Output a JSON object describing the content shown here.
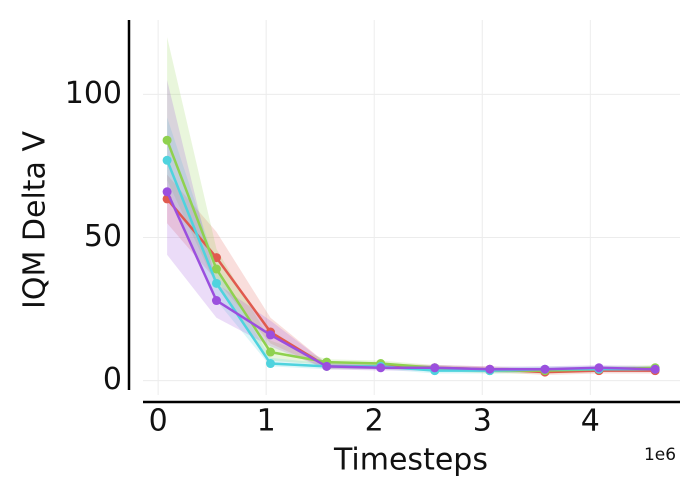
{
  "chart_data": {
    "type": "line",
    "xlabel": "Timesteps",
    "ylabel": "IQM Delta V",
    "x_offset_label": "1e6",
    "x": [
      0.083,
      0.54,
      1.04,
      1.56,
      2.06,
      2.56,
      3.07,
      3.58,
      4.08,
      4.6
    ],
    "series": [
      {
        "color": "#e05a4e",
        "values": [
          63.5,
          43,
          17,
          5,
          5,
          4.5,
          4,
          3,
          3.5,
          3.5
        ],
        "lower": [
          55,
          35,
          13,
          4,
          4,
          3.5,
          3,
          2,
          2.5,
          2.5
        ],
        "upper": [
          72,
          52,
          22,
          6,
          6,
          5.5,
          5,
          4,
          4.5,
          4.5
        ]
      },
      {
        "color": "#8fd14f",
        "values": [
          84,
          39,
          10,
          6.5,
          6,
          4.5,
          3.5,
          3.5,
          4,
          4.5
        ],
        "lower": [
          70,
          33,
          7,
          5.5,
          5,
          3.5,
          2.5,
          2.5,
          3,
          3.5
        ],
        "upper": [
          120,
          46,
          14,
          7.5,
          7,
          5.5,
          4.5,
          4.5,
          5,
          5.5
        ]
      },
      {
        "color": "#4fd3de",
        "values": [
          77,
          34,
          6,
          5,
          5,
          3.5,
          3.5,
          4,
          4,
          4
        ],
        "lower": [
          65,
          28,
          5,
          4,
          4,
          2.5,
          2.5,
          3,
          3,
          3
        ],
        "upper": [
          92,
          40,
          8,
          6,
          6,
          4.5,
          4.5,
          5,
          5,
          5
        ]
      },
      {
        "color": "#9b4fde",
        "values": [
          66,
          28,
          16,
          5,
          4.5,
          4.5,
          4,
          4,
          4.5,
          4
        ],
        "lower": [
          44,
          22,
          12,
          4,
          3.5,
          3.5,
          3,
          3,
          3.5,
          3
        ],
        "upper": [
          105,
          34,
          21,
          6,
          5.5,
          5.5,
          5,
          5,
          5.5,
          5
        ]
      }
    ],
    "xlim": [
      -0.14,
      4.83
    ],
    "ylim": [
      -5,
      126
    ],
    "xticks": [
      0,
      1,
      2,
      3,
      4
    ],
    "yticks": [
      0,
      50,
      100
    ],
    "grid": true
  }
}
